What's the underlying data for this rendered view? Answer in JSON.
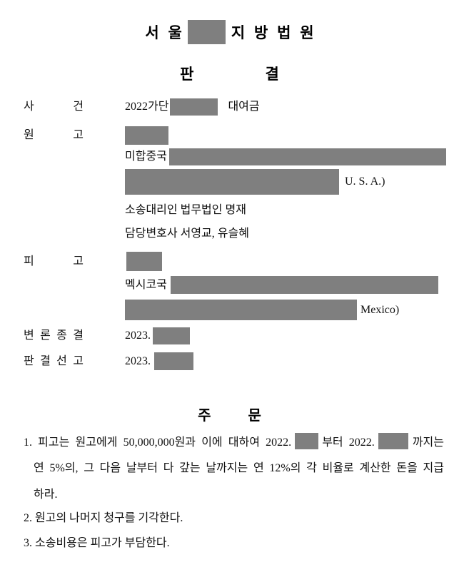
{
  "document": {
    "court_title": {
      "prefix": "서 울",
      "suffix": "지 방 법 원"
    },
    "judgment_heading": {
      "left": "판",
      "right": "결"
    },
    "fields": {
      "case": {
        "label": "사 건",
        "number_prefix": "2022가단",
        "subject": "대여금"
      },
      "plaintiff": {
        "label": "원 고",
        "country_line": "미합중국",
        "address_suffix": "U. S. A.)",
        "counsel": "소송대리인 법무법인 명재",
        "attorneys": "담당변호사 서영교, 유슬혜"
      },
      "defendant": {
        "label": "피 고",
        "country_line": "멕시코국",
        "address_suffix": "Mexico)"
      },
      "hearing_closed": {
        "label": "변 론 종 결",
        "value": "2023."
      },
      "sentencing_date": {
        "label": "판 결 선 고",
        "value": "2023."
      }
    },
    "order_heading": {
      "left": "주",
      "right": "문"
    },
    "order": {
      "item1": {
        "line1_seg1": "1. 피고는 원고에게 50,000,000원과 이에 대하여 2022.",
        "line1_seg2": "부터 2022.",
        "line1_seg3": "까지는",
        "line2": "연 5%의, 그 다음 날부터 다 갚는 날까지는 연 12%의 각 비율로 계산한 돈을 지급",
        "line3": "하라."
      },
      "item2": "2. 원고의 나머지 청구를 기각한다.",
      "item3": "3. 소송비용은 피고가 부담한다."
    },
    "redaction_color": "#7f7f7f"
  }
}
